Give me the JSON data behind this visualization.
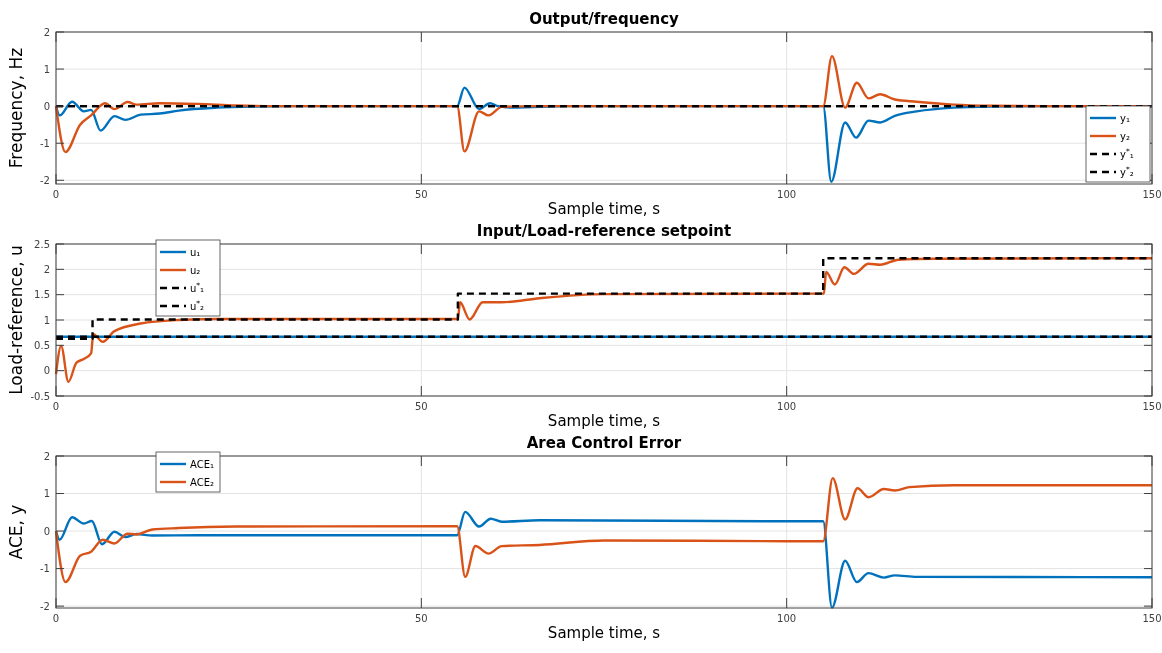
{
  "chart_data": [
    {
      "type": "line",
      "title": "Output/frequency",
      "xlabel": "Sample time, s",
      "ylabel": "Frequency, Hz",
      "xlim": [
        0,
        150
      ],
      "xticks": [
        0,
        50,
        100,
        150
      ],
      "ylim": [
        -2.1,
        2
      ],
      "yticks": [
        -2,
        -1,
        0,
        1,
        2
      ],
      "grid": true,
      "legend": "bottom right",
      "series": [
        {
          "name": "y₁",
          "color": "#0072bd",
          "line_style": "solid",
          "x": [
            0,
            0.5,
            2.2,
            3.8,
            4.8,
            6.1,
            8,
            9.5,
            11.6,
            14.2,
            16.8,
            22,
            27,
            32.4,
            54.9,
            55.9,
            57.9,
            59.4,
            60.5,
            62.6,
            70,
            105,
            106.1,
            108,
            109.5,
            111.2,
            112.8,
            114.8,
            117.8,
            122.9,
            127.9,
            135,
            150
          ],
          "values": [
            0,
            -0.25,
            0.12,
            -0.14,
            -0.1,
            -0.66,
            -0.27,
            -0.37,
            -0.23,
            -0.2,
            -0.12,
            -0.04,
            -0.01,
            0,
            0,
            0.5,
            -0.08,
            0.08,
            0,
            -0.04,
            0,
            0,
            -2.04,
            -0.44,
            -0.85,
            -0.39,
            -0.44,
            -0.26,
            -0.14,
            -0.04,
            -0.01,
            0,
            0
          ]
        },
        {
          "name": "y₂",
          "color": "#d95319",
          "line_style": "solid",
          "x": [
            0,
            1.3,
            3.3,
            4.8,
            6.7,
            8,
            9.8,
            11,
            14.2,
            19.4,
            24.6,
            30,
            54.9,
            55.9,
            57.9,
            59.2,
            61,
            65,
            105,
            106.2,
            108,
            109.6,
            111.2,
            112.8,
            114.8,
            117.8,
            122.9,
            127.9,
            135,
            150
          ],
          "values": [
            0,
            -1.24,
            -0.5,
            -0.25,
            0.08,
            -0.08,
            0.11,
            0.04,
            0.08,
            0.06,
            0.02,
            0,
            0,
            -1.22,
            -0.14,
            -0.25,
            -0.02,
            0,
            0,
            1.35,
            -0.04,
            0.63,
            0.21,
            0.32,
            0.18,
            0.12,
            0.04,
            0.01,
            0,
            0
          ]
        },
        {
          "name": "y$^{*}$₁",
          "color": "#000000",
          "line_style": "dashed",
          "x": [
            0,
            150
          ],
          "values": [
            0,
            0
          ]
        },
        {
          "name": "y$^{*}$₂",
          "color": "#000000",
          "line_style": "dashed",
          "x": [
            0,
            150
          ],
          "values": [
            0,
            0
          ]
        }
      ]
    },
    {
      "type": "line",
      "title": "Input/Load-reference setpoint",
      "xlabel": "Sample time, s",
      "ylabel": "Load-reference, u",
      "xlim": [
        0,
        150
      ],
      "xticks": [
        0,
        50,
        100,
        150
      ],
      "ylim": [
        -0.5,
        2.5
      ],
      "yticks": [
        -0.5,
        0,
        0.5,
        1,
        1.5,
        2,
        2.5
      ],
      "grid": true,
      "legend": "top left",
      "series": [
        {
          "name": "u₁",
          "color": "#0072bd",
          "line_style": "solid",
          "x": [
            0,
            150
          ],
          "values": [
            0.67,
            0.67
          ]
        },
        {
          "name": "u₂",
          "color": "#d95319",
          "line_style": "solid",
          "x": [
            0,
            0.7,
            1.7,
            2.8,
            3.8,
            4.8,
            5.1,
            6.4,
            8,
            11.6,
            16.8,
            22,
            55,
            55.3,
            56.6,
            58.4,
            61,
            66.2,
            75,
            100,
            105.1,
            105.4,
            106.6,
            107.9,
            109.2,
            111.2,
            112.8,
            115.3,
            120.3,
            150
          ],
          "values": [
            -0.07,
            0.49,
            -0.22,
            0.16,
            0.23,
            0.34,
            0.72,
            0.57,
            0.78,
            0.93,
            1,
            1.02,
            1.02,
            1.35,
            1.01,
            1.35,
            1.35,
            1.43,
            1.51,
            1.52,
            1.52,
            1.95,
            1.7,
            2.04,
            1.91,
            2.11,
            2.09,
            2.19,
            2.21,
            2.22
          ]
        },
        {
          "name": "u$^{*}$₁",
          "color": "#000000",
          "line_style": "dashed",
          "x": [
            0,
            150
          ],
          "values": [
            0.67,
            0.67
          ]
        },
        {
          "name": "u$^{*}$₂",
          "color": "#000000",
          "line_style": "dashed",
          "x": [
            0,
            5,
            5,
            55,
            55,
            105,
            105,
            150
          ],
          "values": [
            0.63,
            0.63,
            1.01,
            1.01,
            1.52,
            1.52,
            2.22,
            2.22
          ]
        }
      ]
    },
    {
      "type": "line",
      "title": "Area Control Error",
      "xlabel": "Sample time, s",
      "ylabel": "ACE, y",
      "xlim": [
        0,
        150
      ],
      "xticks": [
        0,
        50,
        100,
        150
      ],
      "ylim": [
        -2.05,
        2
      ],
      "yticks": [
        -2,
        -1,
        0,
        1,
        2
      ],
      "grid": true,
      "legend": "top left",
      "series": [
        {
          "name": "ACE₁",
          "color": "#0072bd",
          "line_style": "solid",
          "x": [
            0,
            0.5,
            2.2,
            3.8,
            4.9,
            6.3,
            8,
            9.5,
            11,
            13.2,
            19.4,
            54.9,
            56,
            57.9,
            59.5,
            61,
            66.2,
            100,
            105,
            106.2,
            108,
            109.6,
            111.2,
            113.3,
            114.8,
            117.8,
            150
          ],
          "values": [
            0,
            -0.23,
            0.37,
            0.2,
            0.27,
            -0.35,
            -0.02,
            -0.16,
            -0.08,
            -0.12,
            -0.11,
            -0.11,
            0.51,
            0.12,
            0.33,
            0.25,
            0.29,
            0.26,
            0.26,
            -2.04,
            -0.79,
            -1.36,
            -1.12,
            -1.24,
            -1.18,
            -1.22,
            -1.23
          ]
        },
        {
          "name": "ACE₂",
          "color": "#d95319",
          "line_style": "solid",
          "x": [
            0,
            1.3,
            3.3,
            4.8,
            6.4,
            8,
            9.8,
            11,
            13.2,
            16.8,
            24.6,
            54.9,
            56,
            57.4,
            59.2,
            61,
            66.2,
            75,
            100,
            105,
            106.3,
            108,
            109.7,
            111.2,
            113.3,
            114.8,
            116.8,
            122.9,
            150
          ],
          "values": [
            0,
            -1.36,
            -0.66,
            -0.55,
            -0.23,
            -0.33,
            -0.07,
            -0.09,
            0.04,
            0.08,
            0.12,
            0.13,
            -1.22,
            -0.4,
            -0.6,
            -0.4,
            -0.37,
            -0.25,
            -0.27,
            -0.27,
            1.41,
            0.31,
            1.14,
            0.9,
            1.12,
            1.08,
            1.17,
            1.22,
            1.22
          ]
        }
      ]
    }
  ]
}
